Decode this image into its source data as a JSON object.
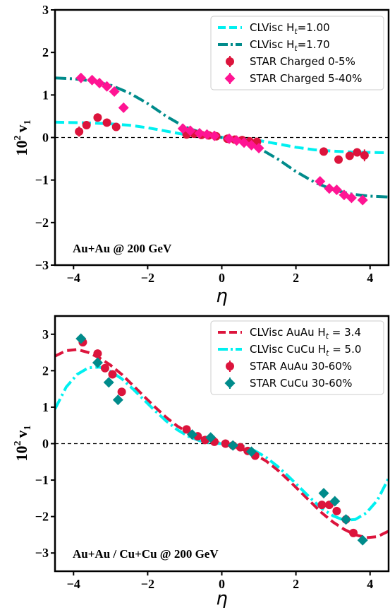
{
  "chart_data": [
    {
      "type": "line",
      "ylabel": "10² v₁",
      "ylabel_base": "10",
      "ylabel_exp": "2",
      "ylabel_var": "v",
      "ylabel_sub": "1",
      "xlabel": "η",
      "annotation": "Au+Au @ 200 GeV",
      "xlim": [
        -4.5,
        4.5
      ],
      "ylim": [
        -3,
        3
      ],
      "xticks": [
        -4,
        -2,
        0,
        2,
        4
      ],
      "yticks": [
        -3,
        -2,
        -1,
        0,
        1,
        2,
        3
      ],
      "xtick_labels": [
        "−4",
        "−2",
        "0",
        "2",
        "4"
      ],
      "ytick_labels": [
        "−3",
        "−2",
        "−1",
        "0",
        "1",
        "2",
        "3"
      ],
      "legend_position": "top-right",
      "series": [
        {
          "name": "CLVisc Hₜ=1.00",
          "name_main": "CLVisc H",
          "name_sub": "t",
          "name_tail": "=1.00",
          "kind": "line",
          "color": "#00f0f0",
          "dash": "dashed",
          "x": [
            -4.5,
            -4.0,
            -3.5,
            -3.0,
            -2.5,
            -2.0,
            -1.5,
            -1.0,
            -0.5,
            0.0,
            0.5,
            1.0,
            1.5,
            2.0,
            2.5,
            3.0,
            3.5,
            4.0,
            4.5
          ],
          "y": [
            0.36,
            0.35,
            0.34,
            0.32,
            0.29,
            0.23,
            0.15,
            0.07,
            0.03,
            0.0,
            -0.03,
            -0.07,
            -0.15,
            -0.23,
            -0.29,
            -0.32,
            -0.34,
            -0.35,
            -0.36
          ]
        },
        {
          "name": "CLVisc Hₜ=1.70",
          "name_main": "CLVisc H",
          "name_sub": "t",
          "name_tail": "=1.70",
          "kind": "line",
          "color": "#008b8b",
          "dash": "dashdot",
          "x": [
            -4.5,
            -4.0,
            -3.5,
            -3.0,
            -2.5,
            -2.0,
            -1.5,
            -1.0,
            -0.5,
            0.0,
            0.5,
            1.0,
            1.5,
            2.0,
            2.5,
            3.0,
            3.5,
            4.0,
            4.5
          ],
          "y": [
            1.4,
            1.38,
            1.33,
            1.23,
            1.05,
            0.8,
            0.5,
            0.25,
            0.1,
            0.0,
            -0.1,
            -0.25,
            -0.5,
            -0.8,
            -1.05,
            -1.23,
            -1.33,
            -1.38,
            -1.4
          ]
        },
        {
          "name": "STAR Charged 0-5%",
          "kind": "points",
          "marker": "circle",
          "color": "#dc143c",
          "x": [
            -3.85,
            -3.65,
            -3.35,
            -3.1,
            -2.85,
            -0.95,
            -0.75,
            -0.55,
            -0.35,
            -0.15,
            0.15,
            0.35,
            0.55,
            0.75,
            0.95,
            2.75,
            3.15,
            3.45,
            3.65,
            3.85
          ],
          "y": [
            0.14,
            0.29,
            0.47,
            0.35,
            0.25,
            0.07,
            0.09,
            0.06,
            0.05,
            0.03,
            -0.03,
            -0.05,
            -0.06,
            -0.09,
            -0.1,
            -0.33,
            -0.52,
            -0.43,
            -0.35,
            -0.42
          ],
          "err": [
            0.12,
            0.07,
            0.06,
            0.06,
            0.06,
            0.03,
            0.03,
            0.03,
            0.03,
            0.03,
            0.03,
            0.03,
            0.03,
            0.03,
            0.03,
            0.06,
            0.06,
            0.06,
            0.07,
            0.14
          ]
        },
        {
          "name": "STAR Charged 5-40%",
          "kind": "points",
          "marker": "diamond",
          "color": "#ff1493",
          "x": [
            -3.8,
            -3.5,
            -3.3,
            -3.1,
            -2.9,
            -2.65,
            -1.05,
            -0.85,
            -0.6,
            -0.4,
            -0.2,
            0.2,
            0.4,
            0.6,
            0.8,
            1.0,
            2.65,
            2.9,
            3.1,
            3.3,
            3.5,
            3.8
          ],
          "y": [
            1.4,
            1.35,
            1.28,
            1.2,
            1.08,
            0.7,
            0.21,
            0.16,
            0.1,
            0.07,
            0.04,
            -0.03,
            -0.07,
            -0.12,
            -0.18,
            -0.25,
            -1.03,
            -1.2,
            -1.23,
            -1.35,
            -1.42,
            -1.47
          ],
          "err": [
            0.06,
            0.05,
            0.05,
            0.05,
            0.05,
            0.1,
            0.03,
            0.03,
            0.03,
            0.03,
            0.03,
            0.03,
            0.03,
            0.03,
            0.03,
            0.03,
            0.05,
            0.05,
            0.05,
            0.05,
            0.05,
            0.06
          ]
        }
      ]
    },
    {
      "type": "line",
      "ylabel": "10² v₁",
      "ylabel_base": "10",
      "ylabel_exp": "2",
      "ylabel_var": "v",
      "ylabel_sub": "1",
      "xlabel": "η",
      "annotation": "Au+Au / Cu+Cu @ 200 GeV",
      "xlim": [
        -4.5,
        4.5
      ],
      "ylim": [
        -3.5,
        3.5
      ],
      "xticks": [
        -4,
        -2,
        0,
        2,
        4
      ],
      "yticks": [
        -3,
        -2,
        -1,
        0,
        1,
        2,
        3
      ],
      "xtick_labels": [
        "−4",
        "−2",
        "0",
        "2",
        "4"
      ],
      "ytick_labels": [
        "−3",
        "−2",
        "−1",
        "0",
        "1",
        "2",
        "3"
      ],
      "legend_position": "top-right",
      "series": [
        {
          "name": "CLVisc AuAu Hₜ = 3.4",
          "name_main": "CLVisc AuAu H",
          "name_sub": "t",
          "name_tail": " = 3.4",
          "kind": "line",
          "color": "#dc143c",
          "dash": "dashed",
          "x": [
            -4.5,
            -4.2,
            -3.9,
            -3.6,
            -3.3,
            -3.0,
            -2.7,
            -2.4,
            -2.1,
            -1.8,
            -1.5,
            -1.2,
            -0.9,
            -0.6,
            -0.3,
            0.0,
            0.3,
            0.6,
            0.9,
            1.2,
            1.5,
            1.8,
            2.1,
            2.4,
            2.7,
            3.0,
            3.3,
            3.6,
            3.9,
            4.2,
            4.5
          ],
          "y": [
            2.4,
            2.55,
            2.58,
            2.5,
            2.35,
            2.15,
            1.9,
            1.6,
            1.3,
            1.0,
            0.72,
            0.48,
            0.3,
            0.17,
            0.07,
            0.0,
            -0.07,
            -0.17,
            -0.3,
            -0.48,
            -0.72,
            -1.0,
            -1.3,
            -1.6,
            -1.9,
            -2.15,
            -2.35,
            -2.5,
            -2.58,
            -2.55,
            -2.4
          ]
        },
        {
          "name": "CLVisc CuCu Hₜ = 5.0",
          "name_main": "CLVisc CuCu H",
          "name_sub": "t",
          "name_tail": " = 5.0",
          "kind": "line",
          "color": "#00f0f0",
          "dash": "dashdot",
          "x": [
            -4.5,
            -4.2,
            -3.9,
            -3.6,
            -3.3,
            -3.0,
            -2.7,
            -2.4,
            -2.1,
            -1.8,
            -1.5,
            -1.2,
            -0.9,
            -0.6,
            -0.3,
            0.0,
            0.3,
            0.6,
            0.9,
            1.2,
            1.5,
            1.8,
            2.1,
            2.4,
            2.7,
            3.0,
            3.3,
            3.6,
            3.9,
            4.2,
            4.5
          ],
          "y": [
            0.95,
            1.55,
            1.9,
            2.08,
            2.1,
            1.98,
            1.78,
            1.5,
            1.2,
            0.9,
            0.62,
            0.38,
            0.2,
            0.08,
            0.02,
            0.0,
            -0.02,
            -0.08,
            -0.2,
            -0.38,
            -0.62,
            -0.9,
            -1.2,
            -1.5,
            -1.78,
            -1.98,
            -2.1,
            -2.08,
            -1.9,
            -1.55,
            -0.95
          ]
        },
        {
          "name": "STAR AuAu 30-60%",
          "kind": "points",
          "marker": "circle",
          "color": "#dc143c",
          "x": [
            -3.75,
            -3.35,
            -3.15,
            -2.95,
            -2.7,
            -0.95,
            -0.65,
            -0.45,
            -0.2,
            0.1,
            0.3,
            0.5,
            0.7,
            0.9,
            2.7,
            2.9,
            3.1,
            3.35,
            3.55
          ],
          "y": [
            2.78,
            2.47,
            2.07,
            1.9,
            1.42,
            0.39,
            0.2,
            0.1,
            0.05,
            0.0,
            -0.05,
            -0.1,
            -0.2,
            -0.33,
            -1.68,
            -1.68,
            -1.85,
            -2.08,
            -2.45
          ],
          "err": [
            0.06,
            0.06,
            0.05,
            0.05,
            0.1,
            0.03,
            0.03,
            0.03,
            0.03,
            0.03,
            0.03,
            0.03,
            0.03,
            0.03,
            0.1,
            0.05,
            0.05,
            0.06,
            0.06
          ]
        },
        {
          "name": "STAR CuCu 30-60%",
          "kind": "points",
          "marker": "diamond",
          "color": "#008b8b",
          "x": [
            -3.8,
            -3.35,
            -3.05,
            -2.8,
            -0.8,
            -0.3,
            0.3,
            0.8,
            2.75,
            3.05,
            3.35,
            3.8
          ],
          "y": [
            2.88,
            2.22,
            1.68,
            1.2,
            0.25,
            0.17,
            -0.05,
            -0.22,
            -1.36,
            -1.58,
            -2.08,
            -2.65
          ],
          "err": [
            0.07,
            0.07,
            0.08,
            0.13,
            0.05,
            0.05,
            0.05,
            0.05,
            0.13,
            0.08,
            0.07,
            0.07
          ]
        }
      ]
    }
  ]
}
